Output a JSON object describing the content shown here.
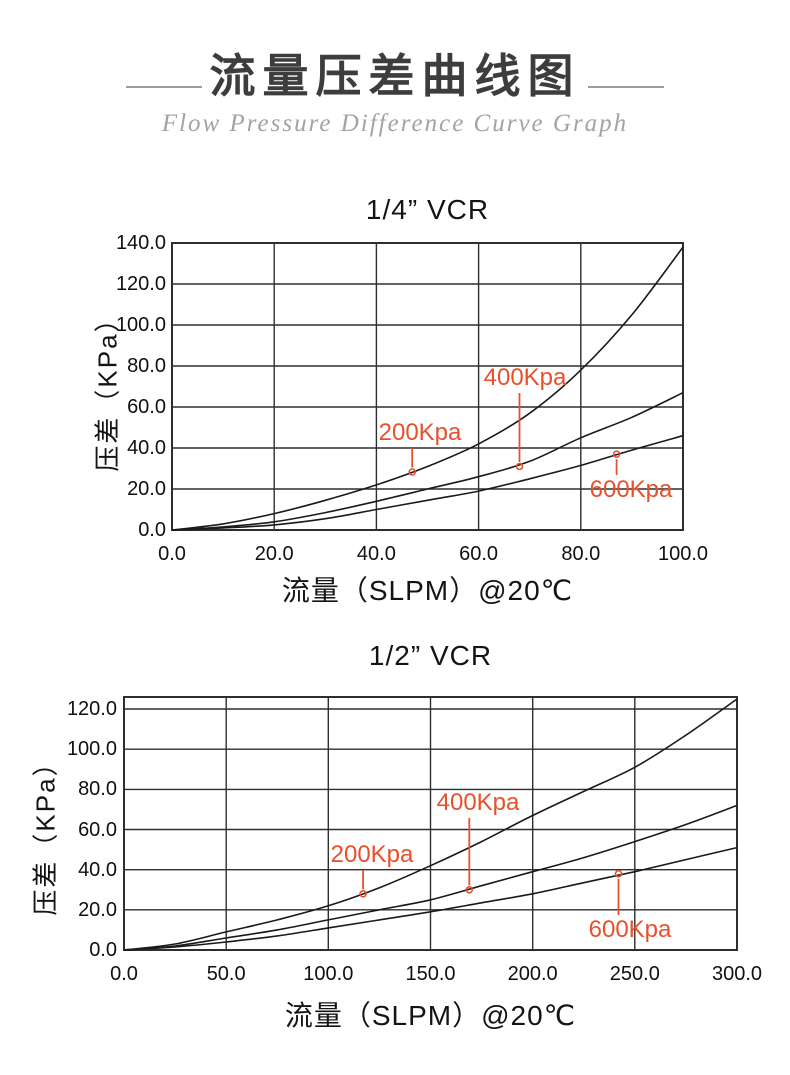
{
  "header": {
    "title": "流量压差曲线图",
    "subtitle": "Flow Pressure Difference Curve Graph"
  },
  "colors": {
    "annotation": "#e8502c",
    "curve": "#1a1a1a",
    "grid": "#2e2e2e",
    "title_text": "#3d3d3d",
    "subtitle_text": "#a3a3a3"
  },
  "chart_data": [
    {
      "type": "line",
      "title": "1/4” VCR",
      "xlabel": "流量（SLPM）@20℃",
      "ylabel": "压差（KPa）",
      "xlim": [
        0,
        100
      ],
      "ylim": [
        0,
        140
      ],
      "grid": true,
      "legend_position": "none",
      "xticks": [
        "0.0",
        "20.0",
        "40.0",
        "60.0",
        "80.0",
        "100.0"
      ],
      "yticks": [
        "0.0",
        "20.0",
        "40.0",
        "60.0",
        "80.0",
        "100.0",
        "120.0",
        "140.0"
      ],
      "series": [
        {
          "name": "200Kpa",
          "x": [
            0,
            10,
            20,
            30,
            40,
            50,
            60,
            70,
            80,
            90,
            100
          ],
          "y": [
            0,
            3,
            8,
            14.5,
            22,
            31,
            42,
            57,
            78,
            105,
            138
          ]
        },
        {
          "name": "400Kpa",
          "x": [
            0,
            10,
            20,
            30,
            40,
            50,
            60,
            70,
            80,
            90,
            100
          ],
          "y": [
            0,
            1.5,
            4,
            8.5,
            14,
            20,
            26,
            33.5,
            45,
            55,
            67
          ]
        },
        {
          "name": "600Kpa",
          "x": [
            0,
            10,
            20,
            30,
            40,
            50,
            60,
            70,
            80,
            90,
            100
          ],
          "y": [
            0,
            1,
            2.5,
            5.5,
            10,
            14.5,
            19,
            25,
            31.5,
            39,
            46
          ]
        }
      ],
      "annotations": [
        {
          "label": "200Kpa",
          "point": {
            "x": 47,
            "y": 28.3
          }
        },
        {
          "label": "400Kpa",
          "point": {
            "x": 68,
            "y": 31
          }
        },
        {
          "label": "600Kpa",
          "point": {
            "x": 87,
            "y": 37
          }
        }
      ]
    },
    {
      "type": "line",
      "title": "1/2” VCR",
      "xlabel": "流量（SLPM）@20℃",
      "ylabel": "压差（KPa）",
      "xlim": [
        0,
        300
      ],
      "ylim": [
        0,
        126
      ],
      "grid": true,
      "legend_position": "none",
      "xticks": [
        "0.0",
        "50.0",
        "100.0",
        "150.0",
        "200.0",
        "250.0",
        "300.0"
      ],
      "yticks": [
        "0.0",
        "20.0",
        "40.0",
        "60.0",
        "80.0",
        "100.0",
        "120.0"
      ],
      "series": [
        {
          "name": "200Kpa",
          "x": [
            0,
            25,
            50,
            75,
            100,
            125,
            150,
            175,
            200,
            225,
            250,
            275,
            300
          ],
          "y": [
            0,
            3,
            9,
            15,
            22,
            31,
            42,
            54,
            67,
            79,
            91,
            107,
            125
          ]
        },
        {
          "name": "400Kpa",
          "x": [
            0,
            25,
            50,
            75,
            100,
            125,
            150,
            175,
            200,
            225,
            250,
            275,
            300
          ],
          "y": [
            0,
            2,
            6,
            10,
            15,
            20,
            25,
            32,
            39,
            46,
            54,
            62.5,
            72
          ]
        },
        {
          "name": "600Kpa",
          "x": [
            0,
            25,
            50,
            75,
            100,
            125,
            150,
            175,
            200,
            225,
            250,
            275,
            300
          ],
          "y": [
            0,
            1.5,
            4,
            7,
            11,
            15,
            19,
            23.5,
            28,
            33.5,
            39,
            45,
            51
          ]
        }
      ],
      "annotations": [
        {
          "label": "200Kpa",
          "point": {
            "x": 117,
            "y": 28
          }
        },
        {
          "label": "400Kpa",
          "point": {
            "x": 169,
            "y": 30
          }
        },
        {
          "label": "600Kpa",
          "point": {
            "x": 242,
            "y": 38
          }
        }
      ]
    }
  ]
}
